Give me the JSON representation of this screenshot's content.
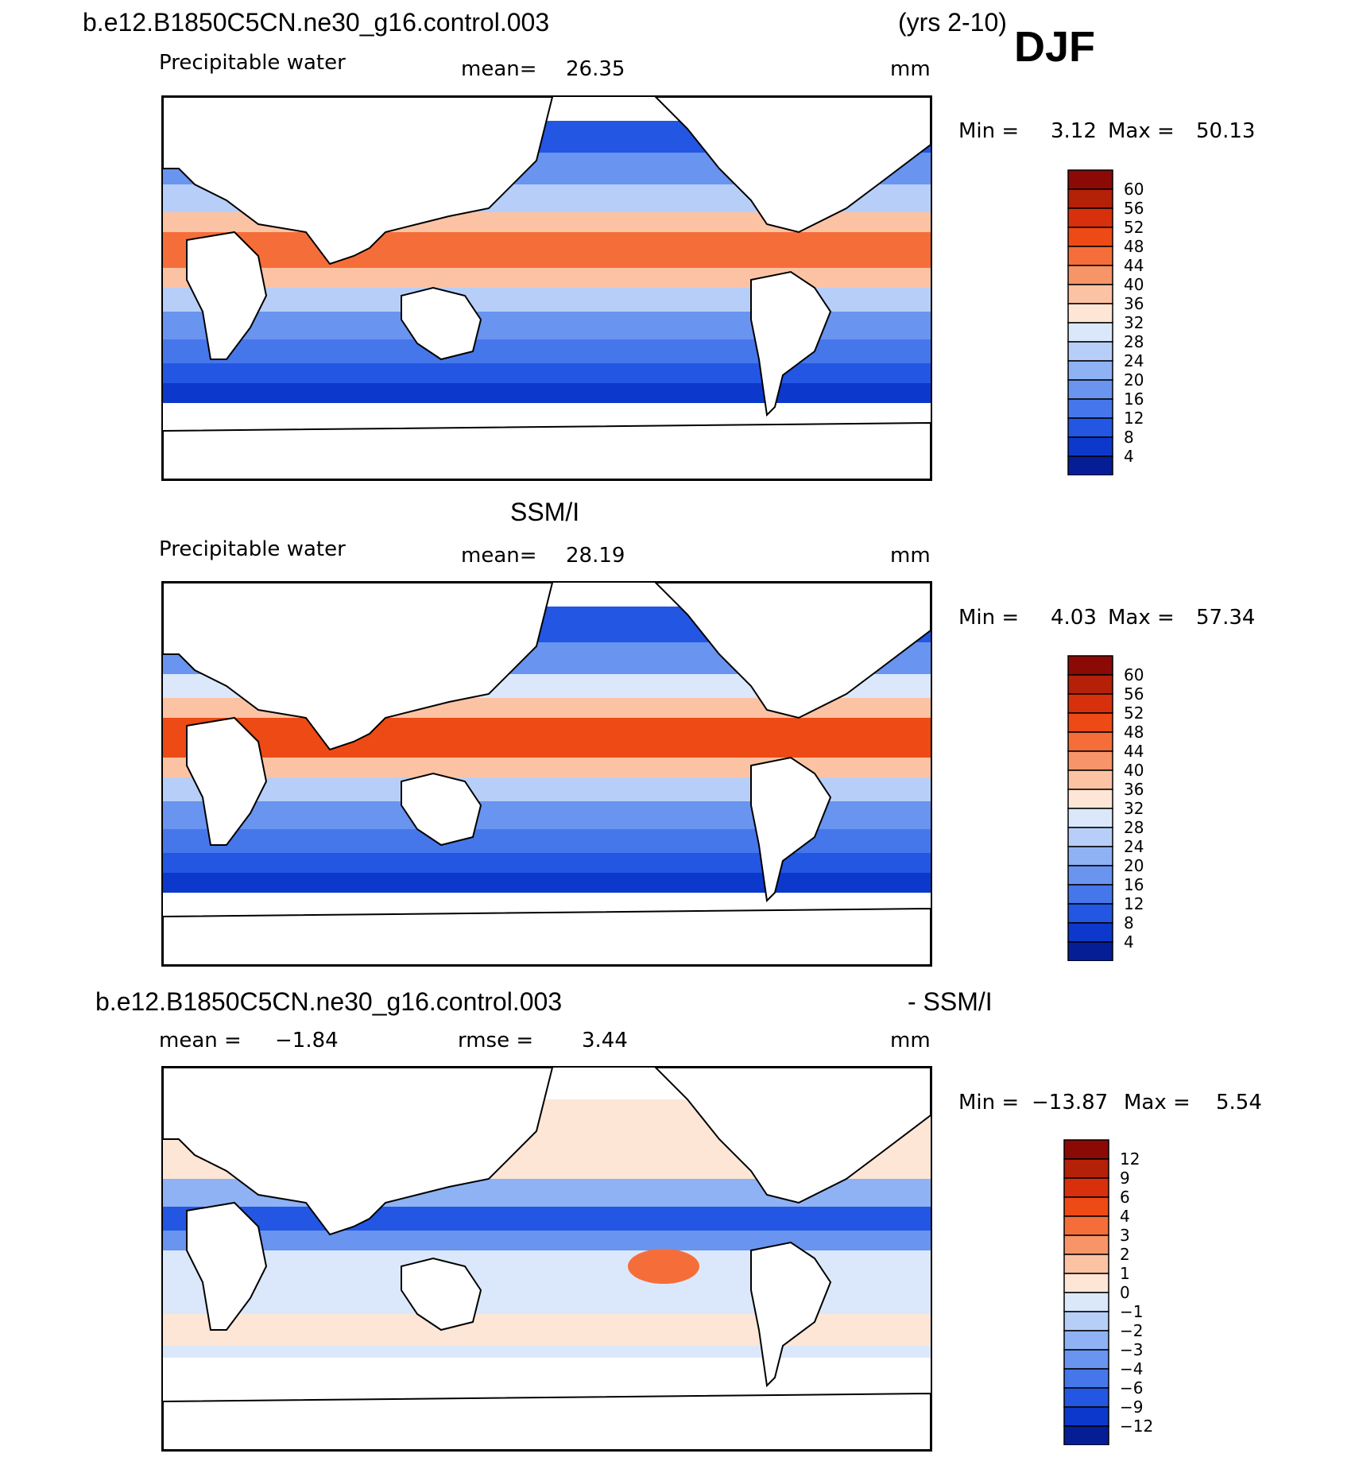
{
  "header": {
    "case": "b.e12.B1850C5CN.ne30_g16.control.003",
    "years": "(yrs 2-10)",
    "season": "DJF"
  },
  "panel1": {
    "variable": "Precipitable water",
    "mean_label": "mean=",
    "mean_value": "26.35",
    "units": "mm",
    "min_label": "Min =",
    "min_value": "3.12",
    "max_label": "Max =",
    "max_value": "50.13",
    "levels": [
      "60",
      "56",
      "52",
      "48",
      "44",
      "40",
      "36",
      "32",
      "28",
      "24",
      "20",
      "16",
      "12",
      "8",
      "4"
    ]
  },
  "panel2": {
    "title": "SSM/I",
    "variable": "Precipitable water",
    "mean_label": "mean=",
    "mean_value": "28.19",
    "units": "mm",
    "min_label": "Min =",
    "min_value": "4.03",
    "max_label": "Max =",
    "max_value": "57.34",
    "levels": [
      "60",
      "56",
      "52",
      "48",
      "44",
      "40",
      "36",
      "32",
      "28",
      "24",
      "20",
      "16",
      "12",
      "8",
      "4"
    ]
  },
  "panel3": {
    "title_left": "b.e12.B1850C5CN.ne30_g16.control.003",
    "title_right": "- SSM/I",
    "mean_label": "mean =",
    "mean_value": "−1.84",
    "rmse_label": "rmse =",
    "rmse_value": "3.44",
    "units": "mm",
    "min_label": "Min =",
    "min_value": "−13.87",
    "max_label": "Max =",
    "max_value": "5.54",
    "levels": [
      "12",
      "9",
      "6",
      "4",
      "3",
      "2",
      "1",
      "0",
      "−1",
      "−2",
      "−3",
      "−4",
      "−6",
      "−9",
      "−12"
    ]
  },
  "colors": {
    "scale16": [
      "#8b0a06",
      "#b42008",
      "#d8300c",
      "#ee4a16",
      "#f56e3a",
      "#f79468",
      "#fbc3a4",
      "#fde6d6",
      "#dbe8fb",
      "#b7cff8",
      "#8fb2f4",
      "#6994ef",
      "#4677ea",
      "#2356e2",
      "#0c39cc",
      "#051e96"
    ],
    "land": "#ffffff",
    "coast": "#000000"
  }
}
